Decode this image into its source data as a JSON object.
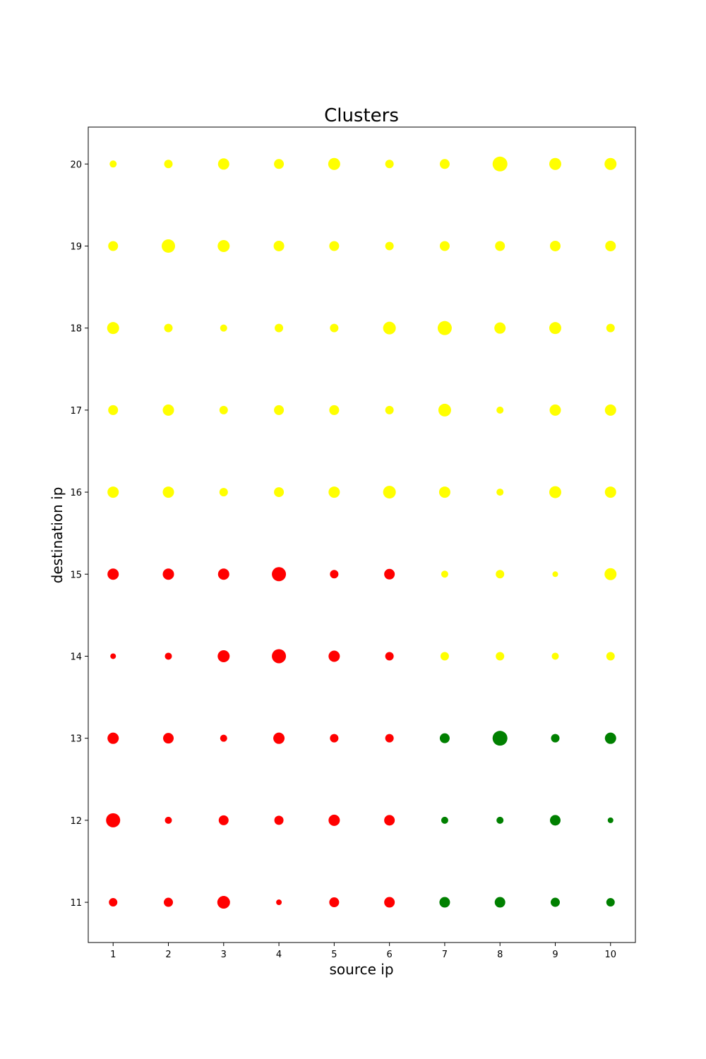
{
  "chart_data": {
    "type": "scatter",
    "title": "Clusters",
    "xlabel": "source ip",
    "ylabel": "destination ip",
    "xlim": [
      0.55,
      10.45
    ],
    "ylim": [
      10.51,
      20.45
    ],
    "xticks": [
      "1",
      "2",
      "3",
      "4",
      "5",
      "6",
      "7",
      "8",
      "9",
      "10"
    ],
    "yticks": [
      "11",
      "12",
      "13",
      "14",
      "15",
      "16",
      "17",
      "18",
      "19",
      "20"
    ],
    "grid": false,
    "legend": "none",
    "colors": {
      "red": "#ff0000",
      "yellow": "#ffff00",
      "green": "#008000"
    },
    "size_note": "marker radius in pixels-equivalent magnitude per point",
    "series": [
      {
        "color": "red",
        "points": [
          {
            "x": 1,
            "y": 11,
            "size": 6
          },
          {
            "x": 2,
            "y": 11,
            "size": 6.5
          },
          {
            "x": 3,
            "y": 11,
            "size": 9
          },
          {
            "x": 4,
            "y": 11,
            "size": 4
          },
          {
            "x": 5,
            "y": 11,
            "size": 7
          },
          {
            "x": 6,
            "y": 11,
            "size": 7.5
          },
          {
            "x": 1,
            "y": 12,
            "size": 10
          },
          {
            "x": 2,
            "y": 12,
            "size": 5
          },
          {
            "x": 3,
            "y": 12,
            "size": 7
          },
          {
            "x": 4,
            "y": 12,
            "size": 6.5
          },
          {
            "x": 5,
            "y": 12,
            "size": 8
          },
          {
            "x": 6,
            "y": 12,
            "size": 7.5
          },
          {
            "x": 1,
            "y": 13,
            "size": 8
          },
          {
            "x": 2,
            "y": 13,
            "size": 7.5
          },
          {
            "x": 3,
            "y": 13,
            "size": 5
          },
          {
            "x": 4,
            "y": 13,
            "size": 8
          },
          {
            "x": 5,
            "y": 13,
            "size": 6
          },
          {
            "x": 6,
            "y": 13,
            "size": 6
          },
          {
            "x": 1,
            "y": 14,
            "size": 4
          },
          {
            "x": 2,
            "y": 14,
            "size": 5
          },
          {
            "x": 3,
            "y": 14,
            "size": 8.5
          },
          {
            "x": 4,
            "y": 14,
            "size": 10
          },
          {
            "x": 5,
            "y": 14,
            "size": 8
          },
          {
            "x": 6,
            "y": 14,
            "size": 6
          },
          {
            "x": 1,
            "y": 15,
            "size": 8
          },
          {
            "x": 2,
            "y": 15,
            "size": 8
          },
          {
            "x": 3,
            "y": 15,
            "size": 8
          },
          {
            "x": 4,
            "y": 15,
            "size": 10
          },
          {
            "x": 5,
            "y": 15,
            "size": 6
          },
          {
            "x": 6,
            "y": 15,
            "size": 7.5
          }
        ]
      },
      {
        "color": "green",
        "points": [
          {
            "x": 7,
            "y": 11,
            "size": 7.5
          },
          {
            "x": 8,
            "y": 11,
            "size": 7.5
          },
          {
            "x": 9,
            "y": 11,
            "size": 6.5
          },
          {
            "x": 10,
            "y": 11,
            "size": 6
          },
          {
            "x": 7,
            "y": 12,
            "size": 5
          },
          {
            "x": 8,
            "y": 12,
            "size": 5
          },
          {
            "x": 9,
            "y": 12,
            "size": 7.5
          },
          {
            "x": 10,
            "y": 12,
            "size": 4
          },
          {
            "x": 7,
            "y": 13,
            "size": 7
          },
          {
            "x": 8,
            "y": 13,
            "size": 10.5
          },
          {
            "x": 9,
            "y": 13,
            "size": 6
          },
          {
            "x": 10,
            "y": 13,
            "size": 8
          }
        ]
      },
      {
        "color": "yellow",
        "points": [
          {
            "x": 7,
            "y": 14,
            "size": 6
          },
          {
            "x": 8,
            "y": 14,
            "size": 6
          },
          {
            "x": 9,
            "y": 14,
            "size": 5
          },
          {
            "x": 10,
            "y": 14,
            "size": 6
          },
          {
            "x": 7,
            "y": 15,
            "size": 5
          },
          {
            "x": 8,
            "y": 15,
            "size": 6
          },
          {
            "x": 9,
            "y": 15,
            "size": 4
          },
          {
            "x": 10,
            "y": 15,
            "size": 8.5
          },
          {
            "x": 1,
            "y": 16,
            "size": 8
          },
          {
            "x": 2,
            "y": 16,
            "size": 8
          },
          {
            "x": 3,
            "y": 16,
            "size": 6
          },
          {
            "x": 4,
            "y": 16,
            "size": 7
          },
          {
            "x": 5,
            "y": 16,
            "size": 8
          },
          {
            "x": 6,
            "y": 16,
            "size": 9
          },
          {
            "x": 7,
            "y": 16,
            "size": 8
          },
          {
            "x": 8,
            "y": 16,
            "size": 5
          },
          {
            "x": 9,
            "y": 16,
            "size": 8.5
          },
          {
            "x": 10,
            "y": 16,
            "size": 8
          },
          {
            "x": 1,
            "y": 17,
            "size": 7
          },
          {
            "x": 2,
            "y": 17,
            "size": 8
          },
          {
            "x": 3,
            "y": 17,
            "size": 6
          },
          {
            "x": 4,
            "y": 17,
            "size": 7
          },
          {
            "x": 5,
            "y": 17,
            "size": 7
          },
          {
            "x": 6,
            "y": 17,
            "size": 6
          },
          {
            "x": 7,
            "y": 17,
            "size": 9
          },
          {
            "x": 8,
            "y": 17,
            "size": 5
          },
          {
            "x": 9,
            "y": 17,
            "size": 8
          },
          {
            "x": 10,
            "y": 17,
            "size": 8
          },
          {
            "x": 1,
            "y": 18,
            "size": 8.5
          },
          {
            "x": 2,
            "y": 18,
            "size": 6
          },
          {
            "x": 3,
            "y": 18,
            "size": 5
          },
          {
            "x": 4,
            "y": 18,
            "size": 6
          },
          {
            "x": 5,
            "y": 18,
            "size": 6
          },
          {
            "x": 6,
            "y": 18,
            "size": 9
          },
          {
            "x": 7,
            "y": 18,
            "size": 10
          },
          {
            "x": 8,
            "y": 18,
            "size": 8
          },
          {
            "x": 9,
            "y": 18,
            "size": 8.5
          },
          {
            "x": 10,
            "y": 18,
            "size": 6
          },
          {
            "x": 1,
            "y": 19,
            "size": 7
          },
          {
            "x": 2,
            "y": 19,
            "size": 9.5
          },
          {
            "x": 3,
            "y": 19,
            "size": 8.5
          },
          {
            "x": 4,
            "y": 19,
            "size": 7.5
          },
          {
            "x": 5,
            "y": 19,
            "size": 7
          },
          {
            "x": 6,
            "y": 19,
            "size": 6
          },
          {
            "x": 7,
            "y": 19,
            "size": 7
          },
          {
            "x": 8,
            "y": 19,
            "size": 7
          },
          {
            "x": 9,
            "y": 19,
            "size": 7.5
          },
          {
            "x": 10,
            "y": 19,
            "size": 7.5
          },
          {
            "x": 1,
            "y": 20,
            "size": 5
          },
          {
            "x": 2,
            "y": 20,
            "size": 6
          },
          {
            "x": 3,
            "y": 20,
            "size": 8
          },
          {
            "x": 4,
            "y": 20,
            "size": 7
          },
          {
            "x": 5,
            "y": 20,
            "size": 8.5
          },
          {
            "x": 6,
            "y": 20,
            "size": 6
          },
          {
            "x": 7,
            "y": 20,
            "size": 7
          },
          {
            "x": 8,
            "y": 20,
            "size": 10.5
          },
          {
            "x": 9,
            "y": 20,
            "size": 8.5
          },
          {
            "x": 10,
            "y": 20,
            "size": 8.5
          }
        ]
      }
    ]
  }
}
